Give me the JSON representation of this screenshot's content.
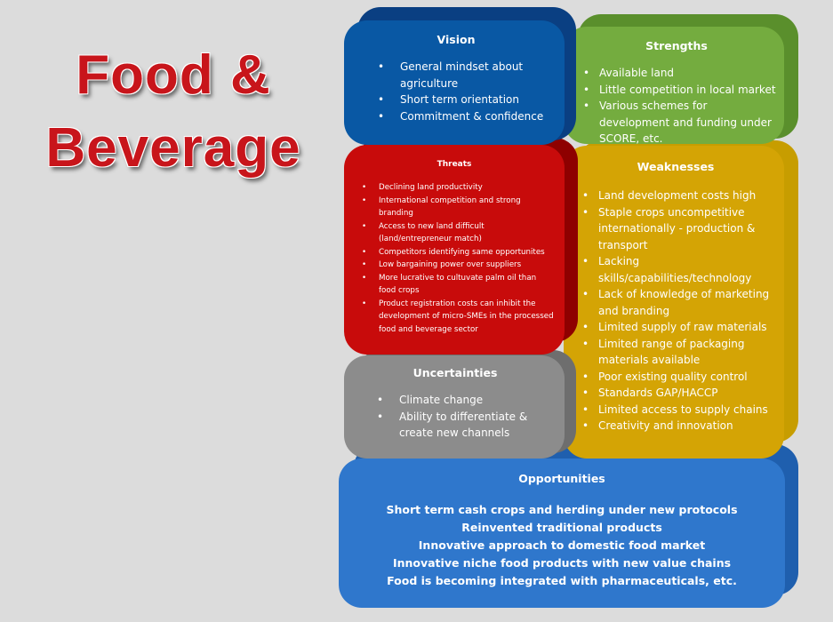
{
  "title": {
    "line1": "Food &",
    "line2": "Beverage"
  },
  "vision": {
    "heading": "Vision",
    "items": [
      "General mindset about agriculture",
      "Short term orientation",
      "Commitment & confidence"
    ]
  },
  "strengths": {
    "heading": "Strengths",
    "items": [
      "Available land",
      "Little competition in local market",
      "Various schemes for development and funding under SCORE, etc."
    ]
  },
  "threats": {
    "heading": "Threats",
    "items": [
      "Declining land productivity",
      "International competition and strong branding",
      "Access to new land difficult (land/entrepreneur match)",
      "Competitors identifying same opportunites",
      "Low bargaining power over suppliers",
      "More lucrative to cultuvate palm oil than food crops",
      "Product registration costs can inhibit the development of micro-SMEs in the processed food and beverage sector"
    ]
  },
  "weaknesses": {
    "heading": "Weaknesses",
    "items": [
      "Land development costs high",
      "Staple crops uncompetitive internationally - production & transport",
      "Lacking skills/capabilities/technology",
      "Lack of knowledge of marketing and branding",
      "Limited supply of raw materials",
      "Limited range of packaging materials available",
      "Poor existing quality control",
      "Standards GAP/HACCP",
      "Limited access to supply chains",
      "Creativity and innovation"
    ]
  },
  "uncertainties": {
    "heading": "Uncertainties",
    "items": [
      "Climate change",
      "Ability to differentiate & create new channels"
    ]
  },
  "opportunities": {
    "heading": "Opportunities",
    "lines": [
      "Short term cash crops and herding under new protocols",
      "Reinvented traditional products",
      "Innovative approach to domestic food market",
      "Innovative niche food products with new value chains",
      "Food is becoming integrated with pharmaceuticals, etc."
    ]
  },
  "colors": {
    "vision": "#0958a4",
    "strengths": "#74ac3f",
    "threats": "#c80b0b",
    "weaknesses": "#d4a405",
    "uncertainties": "#8c8c8c",
    "opportunities": "#2f77cc",
    "title": "#c8151b"
  }
}
